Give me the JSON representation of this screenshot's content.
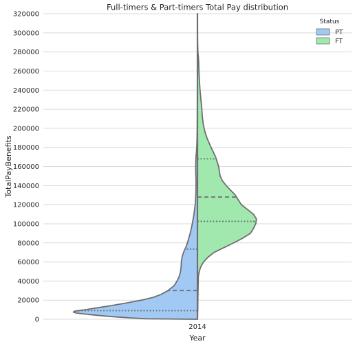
{
  "chart_data": {
    "type": "violin",
    "title": "Full-timers & Part-timers Total Pay distribution",
    "xlabel": "Year",
    "ylabel": "TotalPayBenefits",
    "categories": [
      "2014"
    ],
    "ylim": [
      0,
      320000
    ],
    "yticks": [
      0,
      20000,
      40000,
      60000,
      80000,
      100000,
      120000,
      140000,
      160000,
      180000,
      200000,
      220000,
      240000,
      260000,
      280000,
      300000,
      320000
    ],
    "grid": true,
    "legend": {
      "title": "Status",
      "placement": "top-right",
      "entries": [
        "PT",
        "FT"
      ]
    },
    "colors": {
      "PT": "#a1c9f4",
      "FT": "#a1e8af",
      "outline": "#6e6e6e",
      "grid": "#d9d9d9"
    },
    "series": [
      {
        "name": "PT",
        "side": "left",
        "quartiles": [
          9000,
          30000,
          73500
        ],
        "density_profile": [
          [
            0,
            0.02
          ],
          [
            500,
            0.34
          ],
          [
            1500,
            0.46
          ],
          [
            3000,
            0.59
          ],
          [
            5000,
            0.72
          ],
          [
            6500,
            0.8
          ],
          [
            7500,
            0.82
          ],
          [
            8500,
            0.81
          ],
          [
            10000,
            0.74
          ],
          [
            12000,
            0.66
          ],
          [
            14000,
            0.58
          ],
          [
            17000,
            0.47
          ],
          [
            20000,
            0.37
          ],
          [
            23000,
            0.29
          ],
          [
            26000,
            0.24
          ],
          [
            30000,
            0.195
          ],
          [
            35000,
            0.155
          ],
          [
            40000,
            0.135
          ],
          [
            45000,
            0.12
          ],
          [
            50000,
            0.112
          ],
          [
            55000,
            0.108
          ],
          [
            58000,
            0.107
          ],
          [
            62000,
            0.105
          ],
          [
            66000,
            0.1
          ],
          [
            70000,
            0.092
          ],
          [
            75000,
            0.078
          ],
          [
            80000,
            0.066
          ],
          [
            85000,
            0.057
          ],
          [
            90000,
            0.048
          ],
          [
            95000,
            0.041
          ],
          [
            100000,
            0.034
          ],
          [
            110000,
            0.023
          ],
          [
            120000,
            0.015
          ],
          [
            130000,
            0.011
          ],
          [
            140000,
            0.0095
          ],
          [
            145000,
            0.0095
          ],
          [
            150000,
            0.0105
          ],
          [
            155000,
            0.0115
          ],
          [
            160000,
            0.0117
          ],
          [
            165000,
            0.011
          ],
          [
            170000,
            0.0095
          ],
          [
            175000,
            0.007
          ],
          [
            180000,
            0.0045
          ],
          [
            190000,
            0.0025
          ],
          [
            200000,
            0.0015
          ],
          [
            220000,
            0.0008
          ],
          [
            250000,
            0.0004
          ],
          [
            280000,
            0.0002
          ],
          [
            320000,
            5e-05
          ]
        ]
      },
      {
        "name": "FT",
        "side": "right",
        "quartiles": [
          102500,
          128000,
          168000
        ],
        "density_profile": [
          [
            0,
            0.0
          ],
          [
            10000,
            0.002
          ],
          [
            30000,
            0.004
          ],
          [
            45000,
            0.006
          ],
          [
            50000,
            0.012
          ],
          [
            55000,
            0.022
          ],
          [
            60000,
            0.04
          ],
          [
            65000,
            0.07
          ],
          [
            70000,
            0.11
          ],
          [
            75000,
            0.175
          ],
          [
            80000,
            0.24
          ],
          [
            85000,
            0.3
          ],
          [
            90000,
            0.35
          ],
          [
            95000,
            0.37
          ],
          [
            100000,
            0.385
          ],
          [
            105000,
            0.39
          ],
          [
            110000,
            0.37
          ],
          [
            115000,
            0.33
          ],
          [
            120000,
            0.29
          ],
          [
            125000,
            0.27
          ],
          [
            130000,
            0.25
          ],
          [
            135000,
            0.22
          ],
          [
            140000,
            0.19
          ],
          [
            145000,
            0.165
          ],
          [
            150000,
            0.15
          ],
          [
            155000,
            0.145
          ],
          [
            160000,
            0.14
          ],
          [
            165000,
            0.13
          ],
          [
            170000,
            0.12
          ],
          [
            175000,
            0.105
          ],
          [
            180000,
            0.09
          ],
          [
            185000,
            0.076
          ],
          [
            190000,
            0.063
          ],
          [
            195000,
            0.052
          ],
          [
            200000,
            0.044
          ],
          [
            205000,
            0.038
          ],
          [
            210000,
            0.034
          ],
          [
            215000,
            0.031
          ],
          [
            220000,
            0.029
          ],
          [
            225000,
            0.026
          ],
          [
            230000,
            0.023
          ],
          [
            235000,
            0.02
          ],
          [
            240000,
            0.017
          ],
          [
            250000,
            0.013
          ],
          [
            260000,
            0.01
          ],
          [
            270000,
            0.008
          ],
          [
            275000,
            0.006
          ],
          [
            280000,
            0.003
          ],
          [
            290000,
            0.001
          ],
          [
            320000,
            0.0
          ]
        ]
      }
    ]
  }
}
